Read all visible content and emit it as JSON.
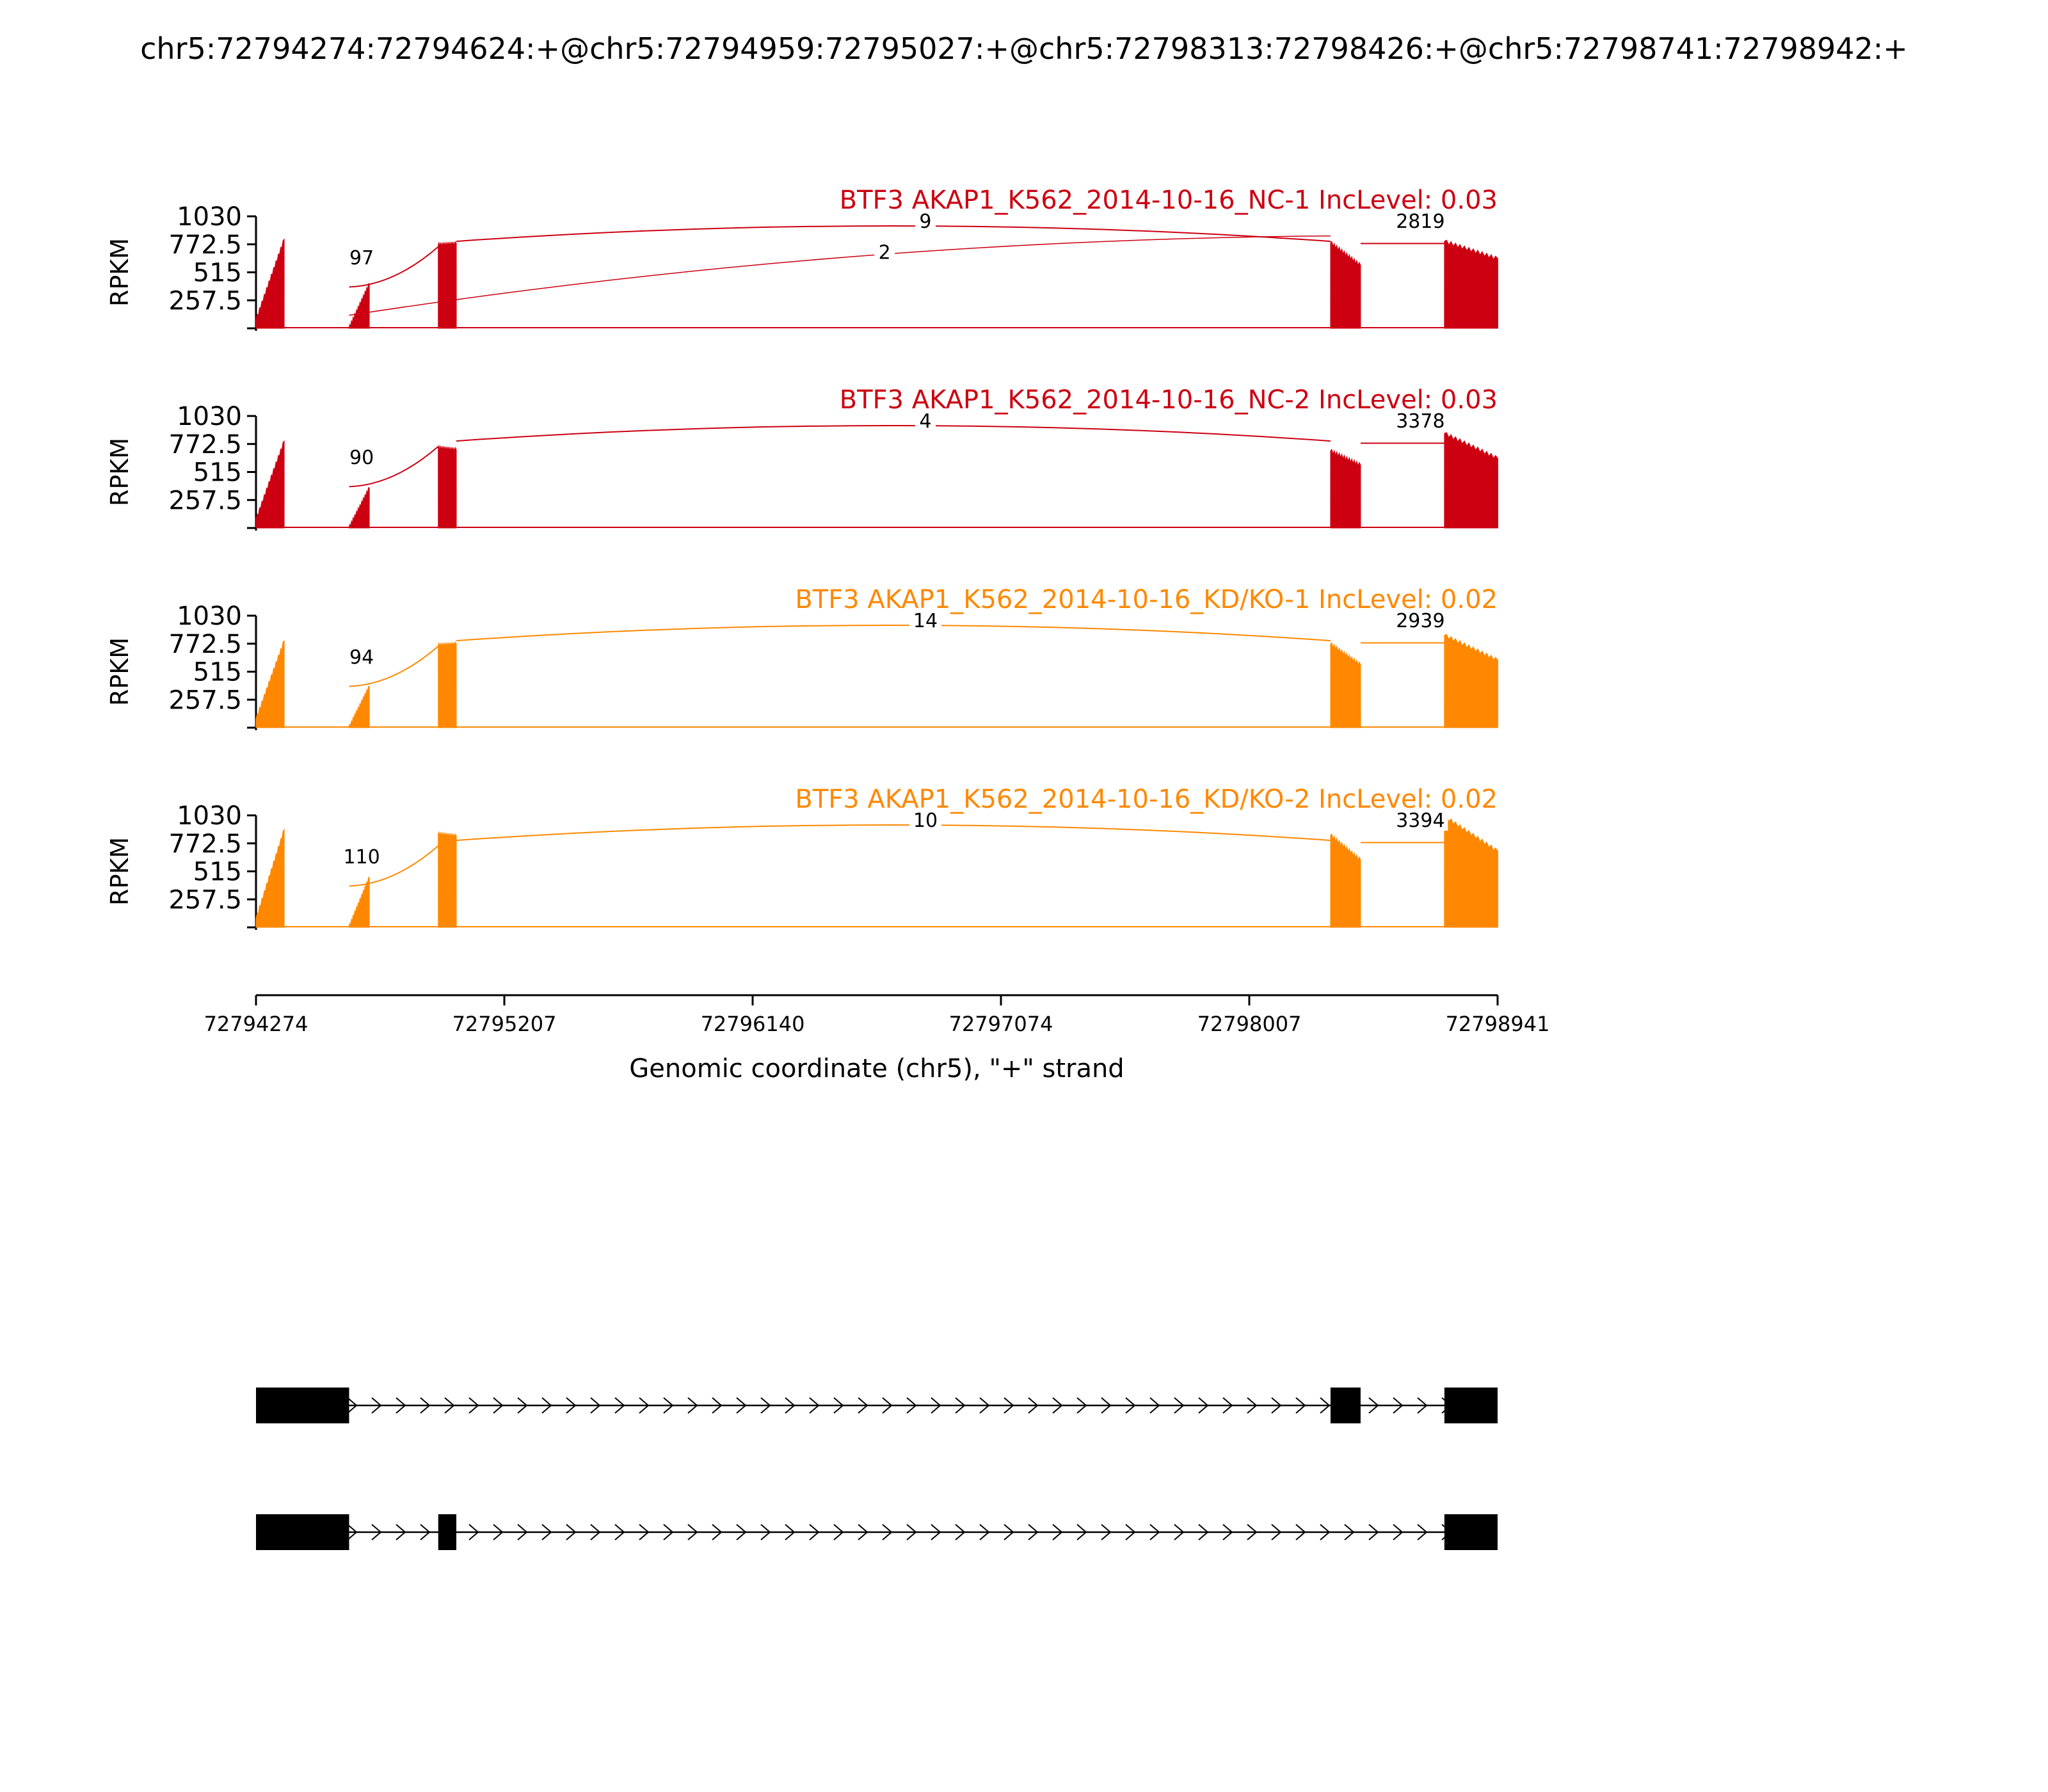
{
  "title": "chr5:72794274:72794624:+@chr5:72794959:72795027:+@chr5:72798313:72798426:+@chr5:72798741:72798942:+",
  "colors": {
    "nc": "#cc0011",
    "kd": "#ff8800",
    "ink": "#000000"
  },
  "chart_data": {
    "type": "area",
    "title": "chr5:72794274:72794624:+@chr5:72794959:72795027:+@chr5:72798313:72798426:+@chr5:72798741:72798942:+",
    "xlabel": "Genomic coordinate (chr5), \"+\" strand",
    "ylabel": "RPKM",
    "xlim": [
      72794274,
      72798941
    ],
    "x_ticks": [
      "72794274",
      "72795207",
      "72796140",
      "72797074",
      "72798007",
      "72798941"
    ],
    "ylim": [
      0,
      1030
    ],
    "y_ticks": [
      "1030",
      "772.5",
      "515",
      "257.5"
    ],
    "grid": false,
    "exons": [
      {
        "start": 72794274,
        "end": 72794624
      },
      {
        "start": 72794959,
        "end": 72795027
      },
      {
        "start": 72798313,
        "end": 72798426
      },
      {
        "start": 72798741,
        "end": 72798942
      }
    ],
    "series": [
      {
        "name": "BTF3 AKAP1_K562_2014-10-16_NC-1 IncLevel: 0.03",
        "group": "nc",
        "exon_coverage": [
          {
            "start": 72794274,
            "end": 72794380,
            "from": 80,
            "to": 820
          },
          {
            "start": 72794623,
            "end": 72794700,
            "from": 0,
            "to": 410
          },
          {
            "start": 72794959,
            "end": 72795027,
            "from": 770,
            "to": 780
          },
          {
            "start": 72798313,
            "end": 72798426,
            "from": 790,
            "to": 580
          },
          {
            "start": 72798741,
            "end": 72798942,
            "from": 800,
            "to": 640
          }
        ],
        "junctions": [
          {
            "label": "97",
            "start": 72794624,
            "end": 72794959
          },
          {
            "label": "9",
            "start": 72795027,
            "end": 72798313
          },
          {
            "label": "2",
            "start": 72794624,
            "end": 72798313
          },
          {
            "label": "2819",
            "start": 72798426,
            "end": 72798741
          }
        ]
      },
      {
        "name": "BTF3 AKAP1_K562_2014-10-16_NC-2 IncLevel: 0.03",
        "group": "nc",
        "exon_coverage": [
          {
            "start": 72794274,
            "end": 72794380,
            "from": 80,
            "to": 800
          },
          {
            "start": 72794623,
            "end": 72794700,
            "from": 0,
            "to": 370
          },
          {
            "start": 72794959,
            "end": 72795027,
            "from": 740,
            "to": 720
          },
          {
            "start": 72798313,
            "end": 72798426,
            "from": 710,
            "to": 580
          },
          {
            "start": 72798741,
            "end": 72798942,
            "from": 870,
            "to": 640
          }
        ],
        "junctions": [
          {
            "label": "90",
            "start": 72794624,
            "end": 72794959
          },
          {
            "label": "4",
            "start": 72795027,
            "end": 72798313
          },
          {
            "label": "3378",
            "start": 72798426,
            "end": 72798741
          }
        ]
      },
      {
        "name": "BTF3 AKAP1_K562_2014-10-16_KD/KO-1 IncLevel: 0.02",
        "group": "kd",
        "exon_coverage": [
          {
            "start": 72794274,
            "end": 72794380,
            "from": 80,
            "to": 800
          },
          {
            "start": 72794623,
            "end": 72794700,
            "from": 0,
            "to": 380
          },
          {
            "start": 72794959,
            "end": 72795027,
            "from": 760,
            "to": 770
          },
          {
            "start": 72798313,
            "end": 72798426,
            "from": 770,
            "to": 580
          },
          {
            "start": 72798741,
            "end": 72798942,
            "from": 850,
            "to": 620
          }
        ],
        "junctions": [
          {
            "label": "94",
            "start": 72794624,
            "end": 72794959
          },
          {
            "label": "14",
            "start": 72795027,
            "end": 72798313
          },
          {
            "label": "2939",
            "start": 72798426,
            "end": 72798741
          }
        ]
      },
      {
        "name": "BTF3 AKAP1_K562_2014-10-16_KD/KO-2 IncLevel: 0.02",
        "group": "kd",
        "exon_coverage": [
          {
            "start": 72794274,
            "end": 72794380,
            "from": 80,
            "to": 900
          },
          {
            "start": 72794623,
            "end": 72794700,
            "from": 0,
            "to": 460
          },
          {
            "start": 72794959,
            "end": 72795027,
            "from": 860,
            "to": 840
          },
          {
            "start": 72798313,
            "end": 72798426,
            "from": 850,
            "to": 620
          },
          {
            "start": 72798741,
            "end": 72798942,
            "from": 1020,
            "to": 700
          }
        ],
        "junctions": [
          {
            "label": "110",
            "start": 72794624,
            "end": 72794959
          },
          {
            "label": "10",
            "start": 72795027,
            "end": 72798313
          },
          {
            "label": "3394",
            "start": 72798426,
            "end": 72798741
          }
        ]
      }
    ],
    "isoforms": [
      {
        "exons": [
          [
            72794274,
            72794624
          ],
          [
            72798313,
            72798426
          ],
          [
            72798741,
            72798942
          ]
        ]
      },
      {
        "exons": [
          [
            72794274,
            72794624
          ],
          [
            72794959,
            72795027
          ],
          [
            72798741,
            72798942
          ]
        ]
      }
    ]
  }
}
